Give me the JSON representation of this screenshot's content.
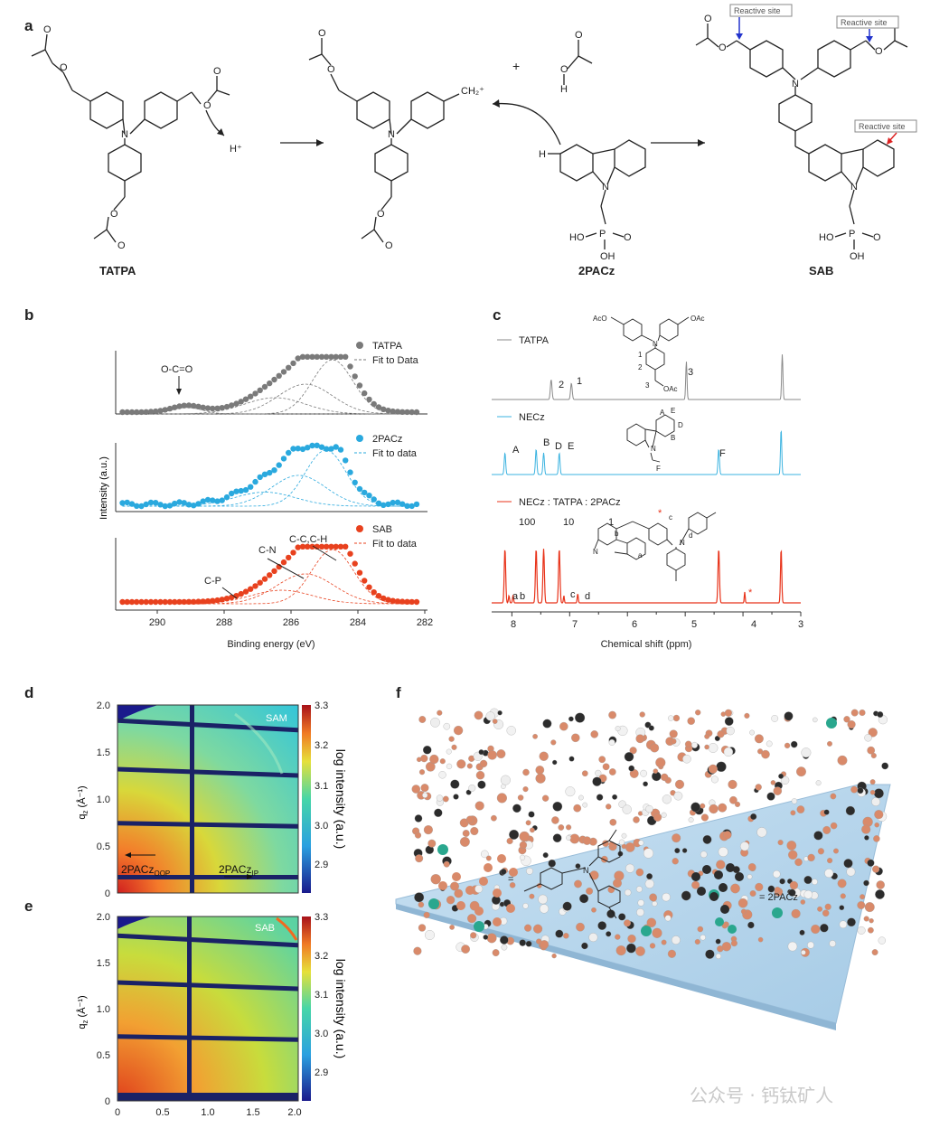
{
  "panels": {
    "a": {
      "letter": "a",
      "labels": {
        "tatpa": "TATPA",
        "pacz": "2PACz",
        "sab": "SAB",
        "hplus": "H⁺",
        "ch2plus": "CH₂⁺",
        "plus": "+",
        "oh_h": "H",
        "reactive": "Reactive site"
      }
    },
    "b": {
      "letter": "b",
      "ylabel": "Intensity (a.u.)",
      "xlabel": "Binding energy (eV)",
      "xticks": [
        "290",
        "288",
        "286",
        "284",
        "282"
      ],
      "top": {
        "series": "TATPA",
        "fit": "Fit to Data",
        "annot": "O-C=O"
      },
      "mid": {
        "series": "2PACz",
        "fit": "Fit to data"
      },
      "bot": {
        "series": "SAB",
        "fit": "Fit to data",
        "annots": [
          "C-C,C-H",
          "C-N",
          "C-P"
        ]
      }
    },
    "c": {
      "letter": "c",
      "xlabel": "Chemical shift (ppm)",
      "xticks": [
        "8",
        "7",
        "6",
        "5",
        "4",
        "3"
      ],
      "traces": [
        {
          "name": "TATPA",
          "peaks": [
            "2",
            "1",
            "3"
          ]
        },
        {
          "name": "NECz",
          "peaks": [
            "A",
            "B",
            "D",
            "E",
            "F"
          ]
        },
        {
          "name": "NECz : TATPA : 2PACz",
          "ratio": [
            "100",
            "10",
            "1"
          ],
          "peaks": [
            "a",
            "b",
            "c",
            "d",
            "*"
          ]
        }
      ],
      "struct_labels": {
        "aco": "AcO",
        "oac": "OAc",
        "n": "N",
        "n1": "1",
        "n2": "2",
        "n3": "3",
        "A": "A",
        "B": "B",
        "D": "D",
        "E": "E",
        "F": "F",
        "a": "a",
        "b": "b",
        "c": "c",
        "d": "d",
        "star": "*"
      }
    },
    "d": {
      "letter": "d",
      "tag": "SAM",
      "ylabel": "q",
      "ysub": "z",
      "yunit": " (Å⁻¹)",
      "yticks": [
        "2.0",
        "1.5",
        "1.0",
        "0.5",
        "0"
      ],
      "cbar": [
        "3.3",
        "3.2",
        "3.1",
        "3.0",
        "2.9"
      ],
      "cbar_label": "log intensity (a.u.)",
      "oop": "2PACz",
      "oop_sub": "OOP",
      "ip": "2PACz",
      "ip_sub": "IP"
    },
    "e": {
      "letter": "e",
      "tag": "SAB",
      "ylabel": "q",
      "ysub": "z",
      "yunit": " (Å⁻¹)",
      "yticks": [
        "2.0",
        "1.5",
        "1.0",
        "0.5",
        "0"
      ],
      "xticks": [
        "0",
        "0.5",
        "1.0",
        "1.5",
        "2.0"
      ],
      "cbar": [
        "3.3",
        "3.2",
        "3.1",
        "3.0",
        "2.9"
      ],
      "cbar_label": "log intensity (a.u.)"
    },
    "f": {
      "letter": "f",
      "eq": "=",
      "eq2": "= 2PACz"
    }
  },
  "watermark": "公众号 · 钙钛矿人",
  "colors": {
    "tatpa": "#7a7a7a",
    "pacz": "#2aa9de",
    "sab": "#e8411e",
    "c_tatpa": "#8a8a8a",
    "c_necz": "#3bb3e0",
    "c_mix": "#e8331a"
  }
}
